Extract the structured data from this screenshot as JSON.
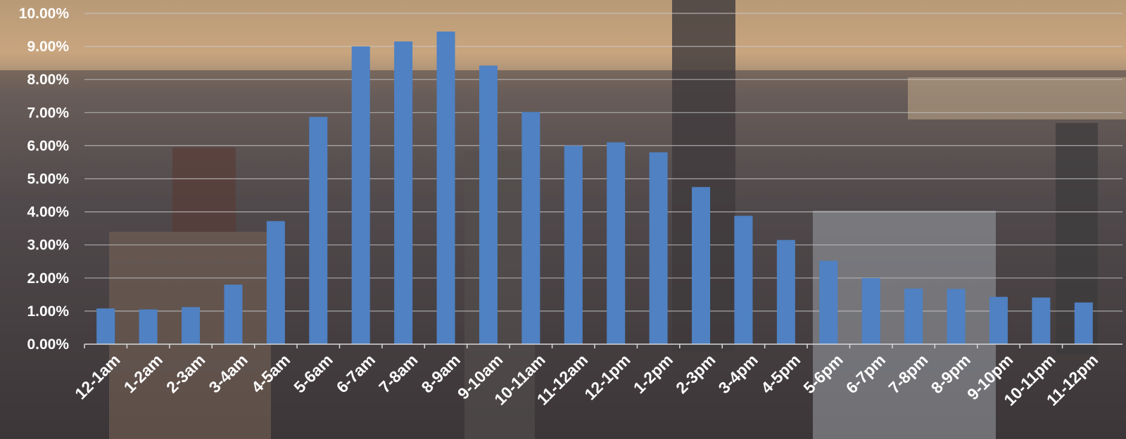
{
  "colors": {
    "bar": "#4f81c3",
    "grid": "#c8c8c8",
    "axis": "#d9d9d9",
    "label": "#ffffff"
  },
  "chart_data": {
    "type": "bar",
    "title": "",
    "xlabel": "",
    "ylabel": "",
    "ylim": [
      0,
      10
    ],
    "ytick_labels": [
      "0.00%",
      "1.00%",
      "2.00%",
      "3.00%",
      "4.00%",
      "5.00%",
      "6.00%",
      "7.00%",
      "8.00%",
      "9.00%",
      "10.00%"
    ],
    "grid": true,
    "legend": "none",
    "categories": [
      "12-1am",
      "1-2am",
      "2-3am",
      "3-4am",
      "4-5am",
      "5-6am",
      "6-7am",
      "7-8am",
      "8-9am",
      "9-10am",
      "10-11am",
      "11-12am",
      "12-1pm",
      "1-2pm",
      "2-3pm",
      "3-4pm",
      "4-5pm",
      "5-6pm",
      "6-7pm",
      "7-8pm",
      "8-9pm",
      "9-10pm",
      "10-11pm",
      "11-12pm"
    ],
    "series": [
      {
        "values": [
          1.08,
          1.05,
          1.12,
          1.8,
          3.72,
          6.87,
          9.0,
          9.15,
          9.45,
          8.42,
          7.02,
          6.0,
          6.1,
          5.8,
          4.75,
          3.88,
          3.15,
          2.52,
          2.0,
          1.68,
          1.67,
          1.43,
          1.41,
          1.26
        ]
      }
    ]
  }
}
